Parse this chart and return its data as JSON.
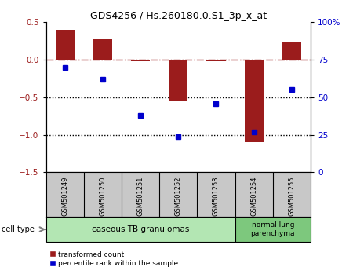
{
  "title": "GDS4256 / Hs.260180.0.S1_3p_x_at",
  "samples": [
    "GSM501249",
    "GSM501250",
    "GSM501251",
    "GSM501252",
    "GSM501253",
    "GSM501254",
    "GSM501255"
  ],
  "transformed_count": [
    0.4,
    0.27,
    -0.02,
    -0.55,
    -0.02,
    -1.1,
    0.23
  ],
  "percentile_rank": [
    70,
    62,
    38,
    24,
    46,
    27,
    55
  ],
  "bar_color": "#9b1c1c",
  "dot_color": "#0000cc",
  "left_ylim": [
    -1.5,
    0.5
  ],
  "right_ylim": [
    0,
    100
  ],
  "left_yticks": [
    -1.5,
    -1.0,
    -0.5,
    0.0,
    0.5
  ],
  "right_yticks": [
    0,
    25,
    50,
    75,
    100
  ],
  "right_yticklabels": [
    "0",
    "25",
    "50",
    "75",
    "100%"
  ],
  "hline_y": 0,
  "dotted_hlines": [
    -0.5,
    -1.0
  ],
  "cell_type_groups": [
    {
      "label": "caseous TB granulomas",
      "start": 0,
      "end": 5,
      "color": "#b3e6b3"
    },
    {
      "label": "normal lung\nparenchyma",
      "start": 5,
      "end": 7,
      "color": "#7dc87d"
    }
  ],
  "cell_type_label": "cell type",
  "legend_red_label": "transformed count",
  "legend_blue_label": "percentile rank within the sample",
  "background_color": "#ffffff",
  "plot_bg_color": "#ffffff",
  "bar_width": 0.5,
  "label_bg_color": "#c8c8c8",
  "sample_font_size": 6.0,
  "title_fontsize": 9
}
